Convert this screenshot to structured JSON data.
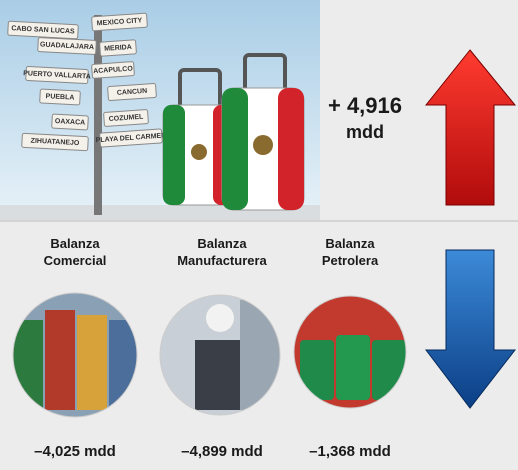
{
  "top": {
    "signs": [
      "CABO SAN LUCAS",
      "MEXICO CITY",
      "GUADALAJARA",
      "MERIDA",
      "PUERTO VALLARTA",
      "ACAPULCO",
      "PUEBLA",
      "CANCUN",
      "OAXACA",
      "COZUMEL",
      "ZIHUATANEJO",
      "PLAYA DEL CARMEN"
    ],
    "value": "+ 4,916",
    "unit": "mdd"
  },
  "bottom": [
    {
      "label": [
        "Balanza",
        "Comercial"
      ],
      "value": "–4,025 mdd"
    },
    {
      "label": [
        "Balanza",
        "Manufacturera"
      ],
      "value": "–4,899 mdd"
    },
    {
      "label": [
        "Balanza",
        "Petrolera"
      ],
      "value": "–1,368 mdd"
    }
  ]
}
